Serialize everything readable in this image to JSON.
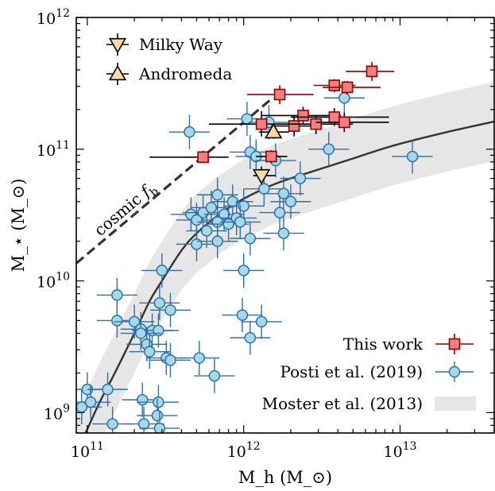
{
  "chart_data": {
    "type": "scatter",
    "title": "",
    "xlabel": "M_h (M_⊙)",
    "ylabel": "M_⋆ (M_⊙)",
    "xscale": "log",
    "yscale": "log",
    "xlim": [
      85000000000.0,
      40000000000000.0
    ],
    "ylim": [
      700000000.0,
      1000000000000.0
    ],
    "grid": false,
    "legend_position": "lower-right",
    "x_ticks": [
      {
        "value": 100000000000.0,
        "base": "10",
        "exp": "11"
      },
      {
        "value": 1000000000000.0,
        "base": "10",
        "exp": "12"
      },
      {
        "value": 10000000000000.0,
        "base": "10",
        "exp": "13"
      }
    ],
    "y_ticks": [
      {
        "value": 1000000000.0,
        "base": "10",
        "exp": "9"
      },
      {
        "value": 10000000000.0,
        "base": "10",
        "exp": "10"
      },
      {
        "value": 100000000000.0,
        "base": "10",
        "exp": "11"
      },
      {
        "value": 1000000000000.0,
        "base": "10",
        "exp": "12"
      }
    ],
    "cosmic_fb_line": {
      "label_main": "cosmic ",
      "label_sym": "f",
      "label_sub": "b",
      "slope_fraction": 0.16,
      "x_range": [
        85000000000.0,
        1500000000000.0
      ]
    },
    "moster_curve": {
      "name": "Moster et al. (2013)",
      "x": [
        85000000000.0,
        100000000000.0,
        120000000000.0,
        150000000000.0,
        200000000000.0,
        250000000000.0,
        300000000000.0,
        400000000000.0,
        500000000000.0,
        700000000000.0,
        1000000000000.0,
        1500000000000.0,
        2000000000000.0,
        3000000000000.0,
        5000000000000.0,
        7000000000000.0,
        10000000000000.0,
        20000000000000.0,
        40000000000000.0
      ],
      "y": [
        500000000.0,
        750000000.0,
        1200000000.0,
        2000000000.0,
        4000000000.0,
        7000000000.0,
        10000000000.0,
        17000000000.0,
        23000000000.0,
        32000000000.0,
        42000000000.0,
        53000000000.0,
        60000000000.0,
        70000000000.0,
        85000000000.0,
        97000000000.0,
        110000000000.0,
        135000000000.0,
        162000000000.0
      ],
      "band_dex": 0.3,
      "band_color": "#e6e6e6",
      "line_color": "#333333"
    },
    "series": [
      {
        "name": "This work",
        "marker": "square",
        "color": "#f08080",
        "points": [
          {
            "x": 550000000000.0,
            "y": 87000000000.0,
            "xlo": 250000000000.0,
            "xhi": 800000000000.0,
            "ylo": 79000000000.0,
            "yhi": 97000000000.0,
            "ec": "#000000"
          },
          {
            "x": 1300000000000.0,
            "y": 155000000000.0,
            "xlo": 600000000000.0,
            "xhi": 1900000000000.0,
            "ylo": 125000000000.0,
            "yhi": 195000000000.0,
            "ec": "#000000"
          },
          {
            "x": 1500000000000.0,
            "y": 88000000000.0,
            "xlo": 1200000000000.0,
            "xhi": 1900000000000.0,
            "ylo": 79000000000.0,
            "yhi": 98000000000.0,
            "ec": "#000000"
          },
          {
            "x": 1700000000000.0,
            "y": 260000000000.0,
            "xlo": 1050000000000.0,
            "xhi": 2800000000000.0,
            "ylo": 220000000000.0,
            "yhi": 305000000000.0,
            "ec": "#8b0000"
          },
          {
            "x": 2100000000000.0,
            "y": 150000000000.0,
            "xlo": 1500000000000.0,
            "xhi": 2900000000000.0,
            "ylo": 125000000000.0,
            "yhi": 180000000000.0,
            "ec": "#000000"
          },
          {
            "x": 2400000000000.0,
            "y": 180000000000.0,
            "xlo": 1300000000000.0,
            "xhi": 4200000000000.0,
            "ylo": 155000000000.0,
            "yhi": 210000000000.0,
            "ec": "#000000"
          },
          {
            "x": 2900000000000.0,
            "y": 155000000000.0,
            "xlo": 1600000000000.0,
            "xhi": 5000000000000.0,
            "ylo": 130000000000.0,
            "yhi": 180000000000.0,
            "ec": "#000000"
          },
          {
            "x": 3800000000000.0,
            "y": 175000000000.0,
            "xlo": 2000000000000.0,
            "xhi": 8500000000000.0,
            "ylo": 150000000000.0,
            "yhi": 205000000000.0,
            "ec": "#000000"
          },
          {
            "x": 3800000000000.0,
            "y": 305000000000.0,
            "xlo": 2800000000000.0,
            "xhi": 5200000000000.0,
            "ylo": 270000000000.0,
            "yhi": 340000000000.0,
            "ec": "#8b0000"
          },
          {
            "x": 4400000000000.0,
            "y": 160000000000.0,
            "xlo": 2900000000000.0,
            "xhi": 8500000000000.0,
            "ylo": 135000000000.0,
            "yhi": 190000000000.0,
            "ec": "#000000"
          },
          {
            "x": 4600000000000.0,
            "y": 295000000000.0,
            "xlo": 3200000000000.0,
            "xhi": 7500000000000.0,
            "ylo": 260000000000.0,
            "yhi": 330000000000.0,
            "ec": "#8b0000"
          },
          {
            "x": 6600000000000.0,
            "y": 390000000000.0,
            "xlo": 4500000000000.0,
            "xhi": 9200000000000.0,
            "ylo": 330000000000.0,
            "yhi": 460000000000.0,
            "ec": "#8b0000"
          }
        ]
      },
      {
        "name": "Posti et al. (2019)",
        "marker": "circle",
        "color": "#a6d8ea",
        "edge": "#2e6fa8",
        "points": [
          {
            "x": 450000000000.0,
            "y": 135000000000.0
          },
          {
            "x": 1050000000000.0,
            "y": 170000000000.0
          },
          {
            "x": 1450000000000.0,
            "y": 160000000000.0
          },
          {
            "x": 4400000000000.0,
            "y": 245000000000.0
          },
          {
            "x": 1100000000000.0,
            "y": 95000000000.0
          },
          {
            "x": 1200000000000.0,
            "y": 88000000000.0
          },
          {
            "x": 1600000000000.0,
            "y": 82000000000.0
          },
          {
            "x": 3500000000000.0,
            "y": 100000000000.0
          },
          {
            "x": 12000000000000.0,
            "y": 88000000000.0
          },
          {
            "x": 2300000000000.0,
            "y": 60000000000.0
          },
          {
            "x": 1350000000000.0,
            "y": 50000000000.0
          },
          {
            "x": 1800000000000.0,
            "y": 46000000000.0
          },
          {
            "x": 680000000000.0,
            "y": 45000000000.0
          },
          {
            "x": 850000000000.0,
            "y": 40000000000.0
          },
          {
            "x": 1000000000000.0,
            "y": 37000000000.0
          },
          {
            "x": 2000000000000.0,
            "y": 40000000000.0
          },
          {
            "x": 1700000000000.0,
            "y": 33000000000.0
          },
          {
            "x": 460000000000.0,
            "y": 32000000000.0
          },
          {
            "x": 550000000000.0,
            "y": 33000000000.0
          },
          {
            "x": 620000000000.0,
            "y": 36000000000.0
          },
          {
            "x": 750000000000.0,
            "y": 32000000000.0
          },
          {
            "x": 900000000000.0,
            "y": 30000000000.0
          },
          {
            "x": 500000000000.0,
            "y": 29000000000.0
          },
          {
            "x": 680000000000.0,
            "y": 28000000000.0
          },
          {
            "x": 800000000000.0,
            "y": 27000000000.0
          },
          {
            "x": 950000000000.0,
            "y": 28000000000.0
          },
          {
            "x": 1800000000000.0,
            "y": 23000000000.0
          },
          {
            "x": 580000000000.0,
            "y": 24000000000.0
          },
          {
            "x": 1100000000000.0,
            "y": 21000000000.0
          },
          {
            "x": 500000000000.0,
            "y": 19000000000.0
          },
          {
            "x": 680000000000.0,
            "y": 20000000000.0
          },
          {
            "x": 300000000000.0,
            "y": 12000000000.0
          },
          {
            "x": 1000000000000.0,
            "y": 12000000000.0
          },
          {
            "x": 155000000000.0,
            "y": 7800000000.0
          },
          {
            "x": 290000000000.0,
            "y": 6800000000.0
          },
          {
            "x": 340000000000.0,
            "y": 6000000000.0
          },
          {
            "x": 980000000000.0,
            "y": 5500000000.0
          },
          {
            "x": 155000000000.0,
            "y": 5000000000.0
          },
          {
            "x": 200000000000.0,
            "y": 4900000000.0
          },
          {
            "x": 1300000000000.0,
            "y": 4900000000.0
          },
          {
            "x": 220000000000.0,
            "y": 4300000000.0
          },
          {
            "x": 260000000000.0,
            "y": 4200000000.0
          },
          {
            "x": 285000000000.0,
            "y": 4200000000.0
          },
          {
            "x": 220000000000.0,
            "y": 4000000000.0
          },
          {
            "x": 1100000000000.0,
            "y": 3700000000.0
          },
          {
            "x": 240000000000.0,
            "y": 3300000000.0
          },
          {
            "x": 250000000000.0,
            "y": 2900000000.0
          },
          {
            "x": 320000000000.0,
            "y": 2600000000.0
          },
          {
            "x": 340000000000.0,
            "y": 2500000000.0
          },
          {
            "x": 520000000000.0,
            "y": 2600000000.0
          },
          {
            "x": 650000000000.0,
            "y": 1900000000.0
          },
          {
            "x": 100000000000.0,
            "y": 1500000000.0
          },
          {
            "x": 135000000000.0,
            "y": 1500000000.0
          },
          {
            "x": 225000000000.0,
            "y": 1250000000.0
          },
          {
            "x": 285000000000.0,
            "y": 1200000000.0
          },
          {
            "x": 105000000000.0,
            "y": 1200000000.0
          },
          {
            "x": 92000000000.0,
            "y": 1100000000.0
          },
          {
            "x": 280000000000.0,
            "y": 950000000.0
          },
          {
            "x": 145000000000.0,
            "y": 820000000.0
          },
          {
            "x": 230000000000.0,
            "y": 820000000.0
          },
          {
            "x": 290000000000.0,
            "y": 760000000.0
          }
        ]
      },
      {
        "name": "Milky Way",
        "marker": "triangle-down",
        "color": "#fcd9a0",
        "edge": "#000000",
        "points": [
          {
            "x": 1300000000000.0,
            "y": 63000000000.0,
            "xlo": 1150000000000.0,
            "xhi": 1600000000000.0,
            "ylo": 54000000000.0,
            "yhi": 74000000000.0
          }
        ]
      },
      {
        "name": "Andromeda",
        "marker": "triangle-up",
        "color": "#fcd9a0",
        "edge": "#000000",
        "points": [
          {
            "x": 1550000000000.0,
            "y": 135000000000.0,
            "xlo": 1250000000000.0,
            "xhi": 1950000000000.0,
            "ylo": 120000000000.0,
            "yhi": 150000000000.0
          }
        ]
      }
    ],
    "legend_top": [
      {
        "label": "Milky Way",
        "marker": "triangle-down"
      },
      {
        "label": "Andromeda",
        "marker": "triangle-up"
      }
    ],
    "legend_bottom": [
      {
        "label": "This work",
        "marker": "square"
      },
      {
        "label": "Posti et al. (2019)",
        "marker": "circle"
      },
      {
        "label": "Moster et al. (2013)",
        "marker": "band"
      }
    ]
  }
}
